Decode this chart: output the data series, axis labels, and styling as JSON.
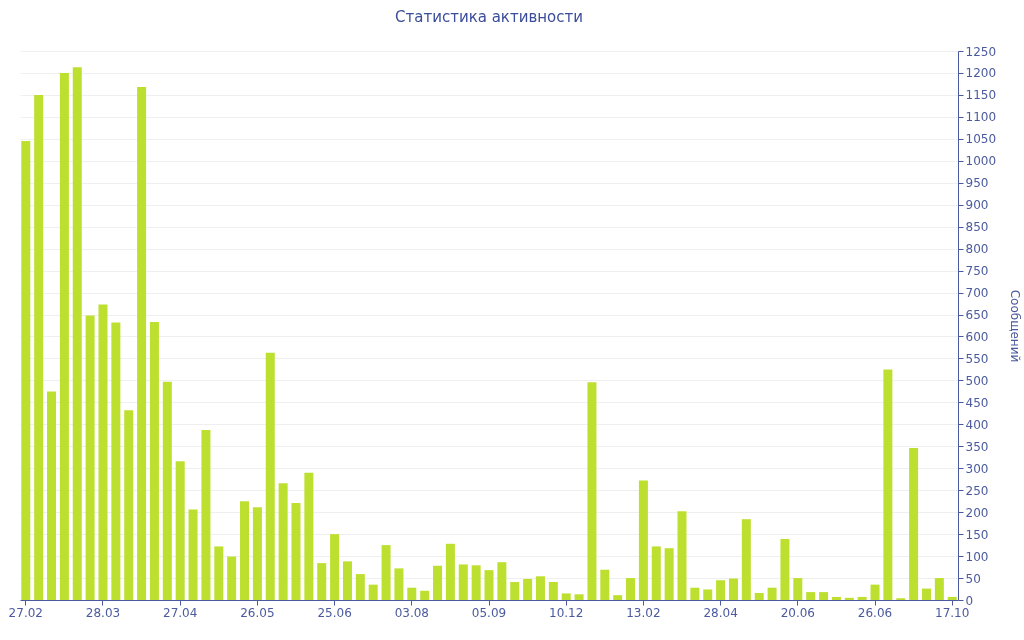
{
  "chart_data": {
    "type": "bar",
    "title": "Статистика активности",
    "ylabel": "Сообщений",
    "color": "#bde030",
    "categories": [
      "27.02",
      null,
      null,
      null,
      null,
      null,
      "28.03",
      null,
      null,
      null,
      null,
      null,
      "27.04",
      null,
      null,
      null,
      null,
      null,
      "26.05",
      null,
      null,
      null,
      null,
      null,
      "25.06",
      null,
      null,
      null,
      null,
      null,
      "03.08",
      null,
      null,
      null,
      null,
      null,
      "05.09",
      null,
      null,
      null,
      null,
      null,
      "10.12",
      null,
      null,
      null,
      null,
      null,
      "13.02",
      null,
      null,
      null,
      null,
      null,
      "28.04",
      null,
      null,
      null,
      null,
      null,
      "20.06",
      null,
      null,
      null,
      null,
      null,
      "26.06",
      null,
      null,
      null,
      null,
      null,
      "17.10"
    ],
    "values": [
      1045,
      1150,
      475,
      1200,
      1213,
      648,
      673,
      632,
      432,
      1168,
      633,
      497,
      316,
      206,
      387,
      122,
      99,
      225,
      211,
      563,
      266,
      221,
      290,
      84,
      150,
      88,
      59,
      35,
      125,
      72,
      28,
      21,
      78,
      128,
      81,
      79,
      68,
      86,
      41,
      48,
      54,
      41,
      15,
      13,
      496,
      69,
      11,
      50,
      272,
      122,
      118,
      202,
      28,
      24,
      45,
      49,
      184,
      16,
      28,
      139,
      50,
      18,
      18,
      7,
      5,
      7,
      35,
      525,
      4,
      346,
      26,
      50,
      7
    ],
    "ylim": [
      0,
      1250
    ],
    "yticks": [
      0,
      50,
      100,
      150,
      200,
      250,
      300,
      350,
      400,
      450,
      500,
      550,
      600,
      650,
      700,
      750,
      800,
      850,
      900,
      950,
      1000,
      1050,
      1100,
      1150,
      1200,
      1250
    ],
    "grid": "y"
  }
}
